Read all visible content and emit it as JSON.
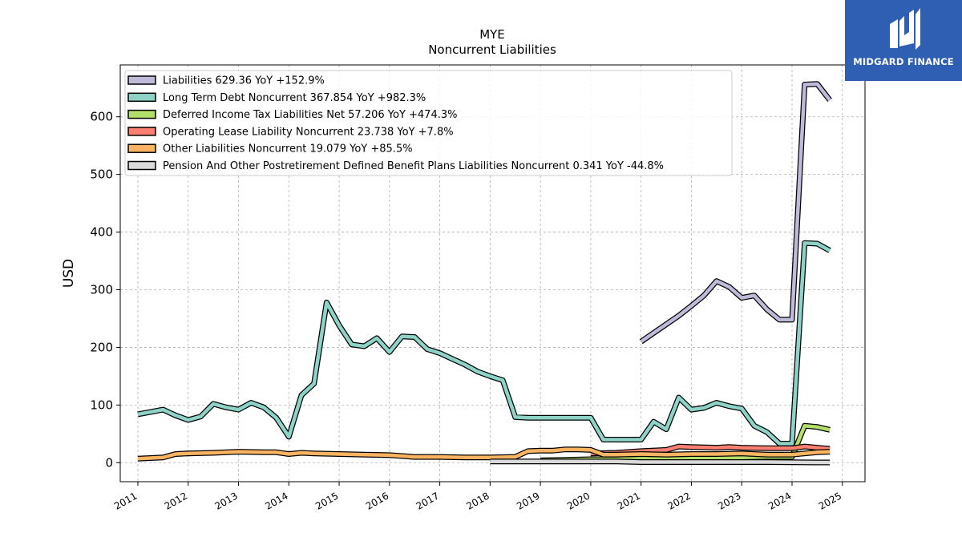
{
  "logo": {
    "text": "MIDGARD FINANCE",
    "icon": "midgard-logo-icon",
    "background": "#2f5fb3"
  },
  "chart_data": {
    "type": "line",
    "title": "MYE",
    "subtitle": "Noncurrent  Liabilities",
    "xlabel": "",
    "ylabel": "USD",
    "xlim": [
      2010.65,
      2025.45
    ],
    "ylim": [
      -33,
      690
    ],
    "x_ticks": [
      "2011",
      "2012",
      "2013",
      "2014",
      "2015",
      "2016",
      "2017",
      "2018",
      "2019",
      "2020",
      "2021",
      "2022",
      "2023",
      "2024",
      "2025"
    ],
    "y_ticks": [
      "0",
      "100",
      "200",
      "300",
      "400",
      "500",
      "600"
    ],
    "y_tick_values": [
      0,
      100,
      200,
      300,
      400,
      500,
      600
    ],
    "grid": true,
    "legend_position": "top-left",
    "series": [
      {
        "name": "Liabilities  629.36 YoY +152.9%",
        "color": "#bebada",
        "x": [
          2021.0,
          2021.75,
          2022.0,
          2022.25,
          2022.5,
          2022.75,
          2023.0,
          2023.25,
          2023.5,
          2023.75,
          2024.0,
          2024.25,
          2024.5,
          2024.75
        ],
        "y": [
          210,
          255,
          272,
          290,
          315,
          305,
          286,
          290,
          266,
          248,
          248,
          656,
          657,
          629
        ]
      },
      {
        "name": "Long Term Debt Noncurrent  367.854 YoY +982.3%",
        "color": "#8dd3c7",
        "x": [
          2011.0,
          2011.5,
          2011.75,
          2012.0,
          2012.25,
          2012.5,
          2012.75,
          2013.0,
          2013.25,
          2013.5,
          2013.75,
          2014.0,
          2014.25,
          2014.5,
          2014.75,
          2015.0,
          2015.25,
          2015.5,
          2015.75,
          2016.0,
          2016.25,
          2016.5,
          2016.75,
          2017.0,
          2017.25,
          2017.5,
          2017.75,
          2018.0,
          2018.25,
          2018.5,
          2018.75,
          2019.0,
          2019.5,
          2020.0,
          2020.25,
          2020.5,
          2021.0,
          2021.25,
          2021.5,
          2021.75,
          2022.0,
          2022.25,
          2022.5,
          2022.75,
          2023.0,
          2023.25,
          2023.5,
          2023.75,
          2024.0,
          2024.25,
          2024.5,
          2024.75
        ],
        "y": [
          84,
          92,
          82,
          74,
          80,
          102,
          96,
          92,
          104,
          96,
          78,
          45,
          117,
          137,
          278,
          238,
          205,
          202,
          216,
          192,
          219,
          218,
          197,
          190,
          180,
          170,
          158,
          150,
          143,
          79,
          78,
          78,
          78,
          78,
          40,
          40,
          40,
          71,
          58,
          113,
          92,
          95,
          104,
          98,
          94,
          64,
          53,
          33,
          33,
          381,
          380,
          368
        ]
      },
      {
        "name": "Deferred Income Tax Liabilities Net  57.206 YoY +474.3%",
        "color": "#b3de69",
        "x": [
          2019.0,
          2019.5,
          2020.0,
          2020.5,
          2021.0,
          2021.5,
          2022.0,
          2022.5,
          2023.0,
          2023.5,
          2024.0,
          2024.25,
          2024.5,
          2024.75
        ],
        "y": [
          4,
          5,
          6,
          6,
          7,
          8,
          8,
          9,
          9,
          10,
          10,
          64,
          62,
          57
        ]
      },
      {
        "name": "Operating Lease Liability Noncurrent  23.738 YoY +7.8%",
        "color": "#fb8072",
        "x": [
          2020.0,
          2020.5,
          2021.0,
          2021.5,
          2021.75,
          2022.0,
          2022.5,
          2022.75,
          2023.0,
          2023.5,
          2024.0,
          2024.25,
          2024.5,
          2024.75
        ],
        "y": [
          16,
          17,
          20,
          22,
          28,
          27,
          26,
          27,
          26,
          25,
          25,
          28,
          26,
          24
        ]
      },
      {
        "name": "Other Liabilities Noncurrent  19.079 YoY +85.5%",
        "color": "#fdb462",
        "x": [
          2011.0,
          2011.5,
          2011.75,
          2012.0,
          2012.5,
          2013.0,
          2013.5,
          2013.75,
          2014.0,
          2014.25,
          2014.5,
          2015.0,
          2015.5,
          2016.0,
          2016.5,
          2017.0,
          2017.5,
          2018.0,
          2018.5,
          2018.75,
          2019.0,
          2019.25,
          2019.5,
          2019.75,
          2020.0,
          2020.25,
          2020.5,
          2021.0,
          2021.5,
          2022.0,
          2022.5,
          2023.0,
          2023.5,
          2024.0,
          2024.5,
          2024.75
        ],
        "y": [
          7,
          9,
          15,
          16,
          17,
          19,
          18,
          18,
          15,
          17,
          16,
          15,
          14,
          13,
          10,
          10,
          9,
          9,
          10,
          20,
          21,
          21,
          23,
          23,
          22,
          14,
          14,
          15,
          14,
          15,
          15,
          16,
          14,
          14,
          18,
          19
        ]
      },
      {
        "name": "Pension And Other Postretirement Defined Benefit Plans Liabilities Noncurrent  0.341 YoY -44.8%",
        "color": "#d9d9d9",
        "x": [
          2018.0,
          2018.5,
          2019.0,
          2019.5,
          2020.0,
          2020.5,
          2021.0,
          2021.5,
          2022.0,
          2022.5,
          2023.0,
          2023.5,
          2024.0,
          2024.5,
          2024.75
        ],
        "y": [
          2,
          2,
          2,
          2,
          2,
          2,
          1,
          1,
          1,
          1,
          1,
          1,
          0.6,
          0.4,
          0.341
        ]
      }
    ]
  }
}
